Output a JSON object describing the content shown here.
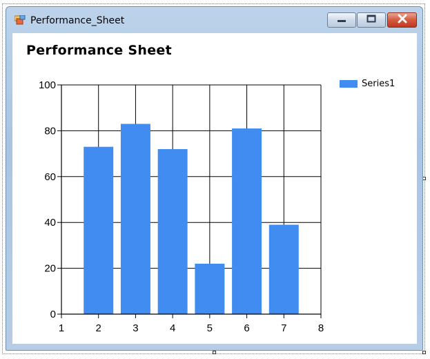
{
  "window": {
    "title": "Performance_Sheet",
    "app_icon": "form-app-icon",
    "controls": {
      "minimize": "minimize-icon",
      "maximize": "maximize-icon",
      "close": "close-icon"
    }
  },
  "chart_data": {
    "type": "bar",
    "title": "Performance Sheet",
    "x": [
      2,
      3,
      4,
      5,
      6,
      7
    ],
    "series": [
      {
        "name": "Series1",
        "values": [
          73,
          83,
          72,
          22,
          81,
          39
        ],
        "color": "#418cf0"
      }
    ],
    "xlim": [
      1,
      8
    ],
    "ylim": [
      0,
      100
    ],
    "xticks": [
      "1",
      "2",
      "3",
      "4",
      "5",
      "6",
      "7",
      "8"
    ],
    "yticks": [
      "0",
      "20",
      "40",
      "60",
      "80",
      "100"
    ],
    "grid": true,
    "legend": "top-right"
  }
}
